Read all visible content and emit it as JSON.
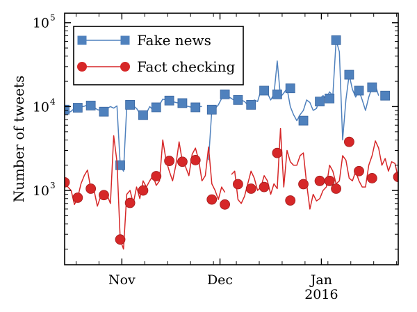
{
  "chart_data": {
    "type": "line",
    "yscale": "log",
    "ylabel": "Number of tweets",
    "xlabel": "",
    "title": "",
    "x_range": [
      0,
      102
    ],
    "ylim": [
      130,
      130000
    ],
    "y_ticks": [
      {
        "value": 1000,
        "base": "10",
        "exp": "3"
      },
      {
        "value": 10000,
        "base": "10",
        "exp": "4"
      },
      {
        "value": 100000,
        "base": "10",
        "exp": "5"
      }
    ],
    "x_ticks": [
      {
        "x": 17.5,
        "label": "Nov",
        "sub": ""
      },
      {
        "x": 47.5,
        "label": "Dec",
        "sub": ""
      },
      {
        "x": 78.5,
        "label": "Jan",
        "sub": "2016"
      }
    ],
    "legend_position": "top-left",
    "series": [
      {
        "name": "Fake news",
        "color": "#4f81bd",
        "marker": "square",
        "points": [
          [
            0,
            9200
          ],
          [
            1,
            8400
          ],
          [
            2,
            8800
          ],
          [
            3,
            9500
          ],
          [
            4,
            9700
          ],
          [
            5,
            9900
          ],
          [
            6,
            10100
          ],
          [
            7,
            10500
          ],
          [
            8,
            10300
          ],
          [
            9,
            9800
          ],
          [
            10,
            9200
          ],
          [
            11,
            9000
          ],
          [
            12,
            8700
          ],
          [
            13,
            9500
          ],
          [
            14,
            10000
          ],
          [
            15,
            9600
          ],
          [
            16,
            10200
          ],
          [
            17,
            2000
          ],
          [
            18,
            1700
          ],
          [
            19,
            10100
          ],
          [
            20,
            10500
          ],
          [
            21,
            10200
          ],
          [
            22,
            9500
          ],
          [
            23,
            8300
          ],
          [
            24,
            7900
          ],
          [
            25,
            8300
          ],
          [
            26,
            10000
          ],
          [
            27,
            9200
          ],
          [
            28,
            9800
          ],
          [
            29,
            10500
          ],
          [
            30,
            12300
          ],
          [
            31,
            12000
          ],
          [
            32,
            11200
          ],
          [
            33,
            11500
          ],
          [
            34,
            11200
          ],
          [
            35,
            11000
          ],
          [
            36,
            10500
          ],
          [
            37,
            10200
          ],
          [
            38,
            10000
          ],
          [
            39,
            9800
          ],
          [
            40,
            9800
          ],
          [
            41,
            10000
          ],
          [
            42,
            10000
          ],
          [
            43,
            null
          ],
          [
            44,
            2300
          ],
          [
            45,
            9200
          ],
          [
            46,
            9500
          ],
          [
            47,
            10500
          ],
          [
            48,
            12500
          ],
          [
            49,
            14000
          ],
          [
            50,
            13200
          ],
          [
            51,
            12500
          ],
          [
            52,
            11800
          ],
          [
            53,
            12500
          ],
          [
            54,
            12000
          ],
          [
            55,
            11500
          ],
          [
            56,
            10500
          ],
          [
            57,
            11000
          ],
          [
            58,
            12000
          ],
          [
            59,
            11500
          ],
          [
            60,
            15500
          ],
          [
            61,
            16000
          ],
          [
            62,
            14500
          ],
          [
            63,
            12000
          ],
          [
            64,
            14000
          ],
          [
            65,
            35000
          ],
          [
            66,
            13000
          ],
          [
            67,
            14500
          ],
          [
            68,
            16500
          ],
          [
            69,
            10000
          ],
          [
            70,
            8000
          ],
          [
            71,
            6800
          ],
          [
            72,
            8000
          ],
          [
            73,
            9000
          ],
          [
            74,
            12000
          ],
          [
            75,
            11200
          ],
          [
            76,
            9000
          ],
          [
            77,
            9500
          ],
          [
            78,
            12500
          ],
          [
            79,
            13500
          ],
          [
            80,
            12500
          ],
          [
            81,
            15000
          ],
          [
            82,
            13500
          ],
          [
            83,
            62000
          ],
          [
            84,
            45000
          ],
          [
            85,
            4000
          ],
          [
            86,
            12000
          ],
          [
            87,
            24000
          ],
          [
            88,
            16000
          ],
          [
            89,
            13000
          ],
          [
            90,
            15500
          ],
          [
            91,
            12000
          ],
          [
            92,
            9000
          ],
          [
            93,
            13000
          ],
          [
            94,
            17000
          ],
          [
            95,
            18000
          ],
          [
            96,
            13500
          ]
        ],
        "marker_points": [
          [
            0,
            9200
          ],
          [
            4,
            9700
          ],
          [
            8,
            10300
          ],
          [
            12,
            8700
          ],
          [
            17,
            2000
          ],
          [
            20,
            10500
          ],
          [
            24,
            7900
          ],
          [
            28,
            9800
          ],
          [
            32,
            11800
          ],
          [
            36,
            11000
          ],
          [
            40,
            9800
          ],
          [
            45,
            9200
          ],
          [
            49,
            14000
          ],
          [
            53,
            12000
          ],
          [
            57,
            10500
          ],
          [
            61,
            15500
          ],
          [
            65,
            14000
          ],
          [
            69,
            16500
          ],
          [
            73,
            6800
          ],
          [
            78,
            11500
          ],
          [
            81,
            12500
          ],
          [
            83,
            62000
          ],
          [
            87,
            24000
          ],
          [
            90,
            15500
          ],
          [
            94,
            17000
          ],
          [
            98,
            13500
          ]
        ]
      },
      {
        "name": "Fact checking",
        "color": "#d62728",
        "marker": "circle",
        "points": [
          [
            0,
            1250
          ],
          [
            1,
            1100
          ],
          [
            2,
            1000
          ],
          [
            3,
            680
          ],
          [
            4,
            820
          ],
          [
            5,
            1200
          ],
          [
            6,
            1500
          ],
          [
            7,
            1750
          ],
          [
            8,
            1050
          ],
          [
            9,
            1000
          ],
          [
            10,
            650
          ],
          [
            11,
            850
          ],
          [
            12,
            1000
          ],
          [
            13,
            880
          ],
          [
            14,
            700
          ],
          [
            15,
            4500
          ],
          [
            16,
            2200
          ],
          [
            17,
            260
          ],
          [
            18,
            200
          ],
          [
            19,
            900
          ],
          [
            20,
            1000
          ],
          [
            21,
            700
          ],
          [
            22,
            1100
          ],
          [
            23,
            800
          ],
          [
            24,
            1300
          ],
          [
            25,
            1100
          ],
          [
            26,
            1300
          ],
          [
            27,
            1500
          ],
          [
            28,
            1150
          ],
          [
            29,
            1300
          ],
          [
            30,
            4000
          ],
          [
            31,
            2300
          ],
          [
            32,
            1700
          ],
          [
            33,
            1300
          ],
          [
            34,
            2000
          ],
          [
            35,
            3800
          ],
          [
            36,
            2200
          ],
          [
            37,
            1900
          ],
          [
            38,
            1500
          ],
          [
            39,
            2700
          ],
          [
            40,
            3200
          ],
          [
            41,
            2300
          ],
          [
            42,
            1300
          ],
          [
            43,
            1500
          ],
          [
            44,
            3300
          ],
          [
            45,
            1200
          ],
          [
            46,
            1000
          ],
          [
            47,
            780
          ],
          [
            48,
            1100
          ],
          [
            49,
            950
          ],
          [
            50,
            null
          ],
          [
            51,
            1550
          ],
          [
            52,
            1700
          ],
          [
            53,
            780
          ],
          [
            54,
            700
          ],
          [
            55,
            850
          ],
          [
            56,
            1200
          ],
          [
            57,
            1700
          ],
          [
            58,
            1400
          ],
          [
            59,
            1000
          ],
          [
            60,
            1100
          ],
          [
            61,
            1500
          ],
          [
            62,
            1300
          ],
          [
            63,
            900
          ],
          [
            64,
            1200
          ],
          [
            65,
            1050
          ],
          [
            66,
            5500
          ],
          [
            67,
            1100
          ],
          [
            68,
            3000
          ],
          [
            69,
            2200
          ],
          [
            70,
            2000
          ],
          [
            71,
            2000
          ],
          [
            72,
            2600
          ],
          [
            73,
            2800
          ],
          [
            74,
            1200
          ],
          [
            75,
            600
          ],
          [
            76,
            900
          ],
          [
            77,
            750
          ],
          [
            78,
            800
          ],
          [
            79,
            1000
          ],
          [
            80,
            1100
          ],
          [
            81,
            2000
          ],
          [
            82,
            1700
          ],
          [
            83,
            1200
          ],
          [
            84,
            1300
          ],
          [
            85,
            2600
          ],
          [
            86,
            2300
          ],
          [
            87,
            1400
          ],
          [
            88,
            1300
          ],
          [
            89,
            1700
          ],
          [
            90,
            1300
          ],
          [
            91,
            1100
          ],
          [
            92,
            1100
          ],
          [
            93,
            2000
          ],
          [
            94,
            2600
          ],
          [
            95,
            3900
          ],
          [
            96,
            3200
          ],
          [
            97,
            2000
          ],
          [
            98,
            2400
          ],
          [
            99,
            1700
          ],
          [
            100,
            2200
          ],
          [
            101,
            2100
          ],
          [
            102,
            1400
          ]
        ],
        "marker_points": [
          [
            0,
            1250
          ],
          [
            4,
            820
          ],
          [
            8,
            1050
          ],
          [
            12,
            880
          ],
          [
            17,
            260
          ],
          [
            20,
            710
          ],
          [
            24,
            1000
          ],
          [
            28,
            1480
          ],
          [
            32,
            2250
          ],
          [
            36,
            2200
          ],
          [
            40,
            2300
          ],
          [
            45,
            780
          ],
          [
            49,
            680
          ],
          [
            53,
            1190
          ],
          [
            57,
            1050
          ],
          [
            61,
            1100
          ],
          [
            65,
            2800
          ],
          [
            69,
            760
          ],
          [
            73,
            1190
          ],
          [
            78,
            1300
          ],
          [
            81,
            1300
          ],
          [
            83,
            1050
          ],
          [
            87,
            3800
          ],
          [
            90,
            1700
          ],
          [
            94,
            1400
          ],
          [
            102,
            1450
          ]
        ]
      }
    ]
  }
}
